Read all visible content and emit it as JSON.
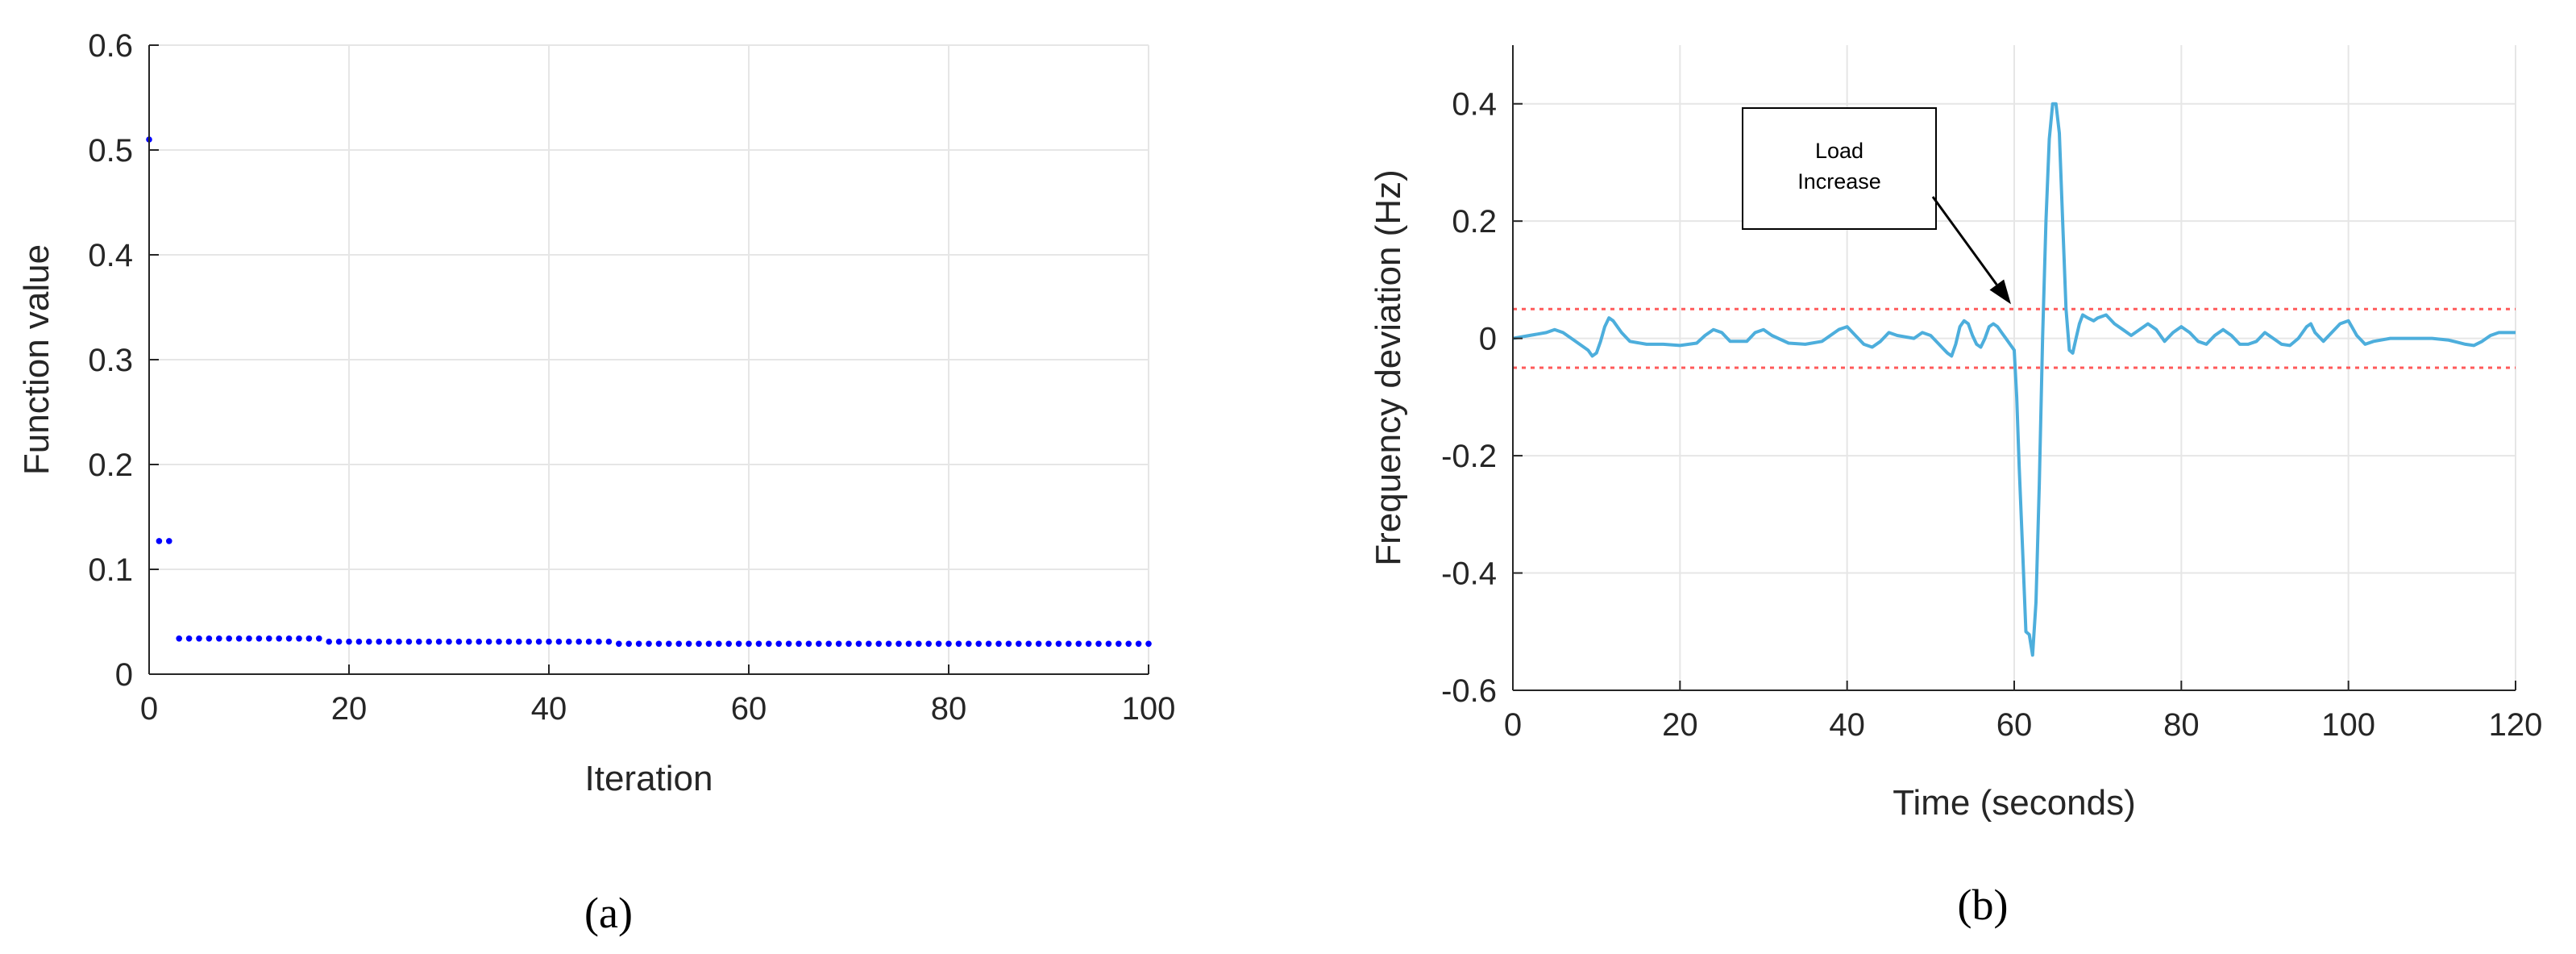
{
  "chart_data": [
    {
      "type": "scatter",
      "panel_label": "(a)",
      "xlabel": "Iteration",
      "ylabel": "Function value",
      "xlim": [
        0,
        100
      ],
      "ylim": [
        0,
        0.6
      ],
      "xticks": [
        0,
        20,
        40,
        60,
        80,
        100
      ],
      "yticks": [
        0,
        0.1,
        0.2,
        0.3,
        0.4,
        0.5,
        0.6
      ],
      "grid": true,
      "marker_color": "#0000ff",
      "series": [
        {
          "points": [
            [
              0,
              0.51
            ],
            [
              1,
              0.127
            ],
            [
              2,
              0.127
            ],
            [
              3,
              0.034
            ],
            [
              4,
              0.034
            ],
            [
              5,
              0.034
            ],
            [
              6,
              0.034
            ],
            [
              7,
              0.034
            ],
            [
              8,
              0.034
            ],
            [
              9,
              0.034
            ],
            [
              10,
              0.034
            ],
            [
              11,
              0.034
            ],
            [
              12,
              0.034
            ],
            [
              13,
              0.034
            ],
            [
              14,
              0.034
            ],
            [
              15,
              0.034
            ],
            [
              16,
              0.034
            ],
            [
              17,
              0.034
            ],
            [
              18,
              0.031
            ],
            [
              19,
              0.031
            ],
            [
              20,
              0.031
            ],
            [
              21,
              0.031
            ],
            [
              22,
              0.031
            ],
            [
              23,
              0.031
            ],
            [
              24,
              0.031
            ],
            [
              25,
              0.031
            ],
            [
              26,
              0.031
            ],
            [
              27,
              0.031
            ],
            [
              28,
              0.031
            ],
            [
              29,
              0.031
            ],
            [
              30,
              0.031
            ],
            [
              31,
              0.031
            ],
            [
              32,
              0.031
            ],
            [
              33,
              0.031
            ],
            [
              34,
              0.031
            ],
            [
              35,
              0.031
            ],
            [
              36,
              0.031
            ],
            [
              37,
              0.031
            ],
            [
              38,
              0.031
            ],
            [
              39,
              0.031
            ],
            [
              40,
              0.031
            ],
            [
              41,
              0.031
            ],
            [
              42,
              0.031
            ],
            [
              43,
              0.031
            ],
            [
              44,
              0.031
            ],
            [
              45,
              0.031
            ],
            [
              46,
              0.031
            ],
            [
              47,
              0.029
            ],
            [
              48,
              0.029
            ],
            [
              49,
              0.029
            ],
            [
              50,
              0.029
            ],
            [
              51,
              0.029
            ],
            [
              52,
              0.029
            ],
            [
              53,
              0.029
            ],
            [
              54,
              0.029
            ],
            [
              55,
              0.029
            ],
            [
              56,
              0.029
            ],
            [
              57,
              0.029
            ],
            [
              58,
              0.029
            ],
            [
              59,
              0.029
            ],
            [
              60,
              0.029
            ],
            [
              61,
              0.029
            ],
            [
              62,
              0.029
            ],
            [
              63,
              0.029
            ],
            [
              64,
              0.029
            ],
            [
              65,
              0.029
            ],
            [
              66,
              0.029
            ],
            [
              67,
              0.029
            ],
            [
              68,
              0.029
            ],
            [
              69,
              0.029
            ],
            [
              70,
              0.029
            ],
            [
              71,
              0.029
            ],
            [
              72,
              0.029
            ],
            [
              73,
              0.029
            ],
            [
              74,
              0.029
            ],
            [
              75,
              0.029
            ],
            [
              76,
              0.029
            ],
            [
              77,
              0.029
            ],
            [
              78,
              0.029
            ],
            [
              79,
              0.029
            ],
            [
              80,
              0.029
            ],
            [
              81,
              0.029
            ],
            [
              82,
              0.029
            ],
            [
              83,
              0.029
            ],
            [
              84,
              0.029
            ],
            [
              85,
              0.029
            ],
            [
              86,
              0.029
            ],
            [
              87,
              0.029
            ],
            [
              88,
              0.029
            ],
            [
              89,
              0.029
            ],
            [
              90,
              0.029
            ],
            [
              91,
              0.029
            ],
            [
              92,
              0.029
            ],
            [
              93,
              0.029
            ],
            [
              94,
              0.029
            ],
            [
              95,
              0.029
            ],
            [
              96,
              0.029
            ],
            [
              97,
              0.029
            ],
            [
              98,
              0.029
            ],
            [
              99,
              0.029
            ],
            [
              100,
              0.029
            ]
          ]
        }
      ]
    },
    {
      "type": "line",
      "panel_label": "(b)",
      "xlabel": "Time (seconds)",
      "ylabel": "Frequency deviation (Hz)",
      "xlim": [
        0,
        120
      ],
      "ylim": [
        -0.6,
        0.5
      ],
      "xticks": [
        0,
        20,
        40,
        60,
        80,
        100,
        120
      ],
      "yticks": [
        -0.6,
        -0.4,
        -0.2,
        0,
        0.2,
        0.4
      ],
      "ytick_labels": [
        "-0.6",
        "-0.4",
        "-0.2",
        "0",
        "0.2",
        "0.4"
      ],
      "grid": true,
      "line_color": "#4daedc",
      "threshold_color": "#ff5a5a",
      "thresholds": [
        0.05,
        -0.05
      ],
      "annotation": {
        "lines": [
          "Load",
          "Increase"
        ],
        "points_to": [
          60,
          0.05
        ]
      },
      "series": [
        {
          "points": [
            [
              0,
              0.0
            ],
            [
              2,
              0.005
            ],
            [
              4,
              0.01
            ],
            [
              5,
              0.015
            ],
            [
              6,
              0.01
            ],
            [
              7,
              0.0
            ],
            [
              8,
              -0.01
            ],
            [
              9,
              -0.02
            ],
            [
              9.5,
              -0.03
            ],
            [
              10,
              -0.025
            ],
            [
              10.5,
              -0.005
            ],
            [
              11,
              0.02
            ],
            [
              11.5,
              0.035
            ],
            [
              12,
              0.03
            ],
            [
              13,
              0.01
            ],
            [
              14,
              -0.005
            ],
            [
              16,
              -0.01
            ],
            [
              18,
              -0.01
            ],
            [
              20,
              -0.012
            ],
            [
              22,
              -0.008
            ],
            [
              23,
              0.005
            ],
            [
              24,
              0.015
            ],
            [
              25,
              0.01
            ],
            [
              26,
              -0.005
            ],
            [
              28,
              -0.005
            ],
            [
              29,
              0.01
            ],
            [
              30,
              0.015
            ],
            [
              31,
              0.005
            ],
            [
              33,
              -0.008
            ],
            [
              35,
              -0.01
            ],
            [
              37,
              -0.005
            ],
            [
              39,
              0.015
            ],
            [
              40,
              0.02
            ],
            [
              41,
              0.005
            ],
            [
              42,
              -0.01
            ],
            [
              43,
              -0.015
            ],
            [
              44,
              -0.005
            ],
            [
              45,
              0.01
            ],
            [
              46,
              0.005
            ],
            [
              48,
              0.0
            ],
            [
              49,
              0.01
            ],
            [
              50,
              0.005
            ],
            [
              51,
              -0.01
            ],
            [
              52,
              -0.025
            ],
            [
              52.5,
              -0.03
            ],
            [
              53,
              -0.01
            ],
            [
              53.5,
              0.02
            ],
            [
              54,
              0.03
            ],
            [
              54.5,
              0.025
            ],
            [
              55,
              0.005
            ],
            [
              55.5,
              -0.01
            ],
            [
              56,
              -0.015
            ],
            [
              56.5,
              0.0
            ],
            [
              57,
              0.02
            ],
            [
              57.5,
              0.025
            ],
            [
              58,
              0.02
            ],
            [
              58.5,
              0.01
            ],
            [
              59,
              0.0
            ],
            [
              59.5,
              -0.01
            ],
            [
              60,
              -0.02
            ],
            [
              60.3,
              -0.1
            ],
            [
              60.6,
              -0.22
            ],
            [
              61,
              -0.36
            ],
            [
              61.4,
              -0.5
            ],
            [
              61.8,
              -0.505
            ],
            [
              62.2,
              -0.54
            ],
            [
              62.6,
              -0.45
            ],
            [
              63,
              -0.25
            ],
            [
              63.4,
              0.0
            ],
            [
              63.8,
              0.2
            ],
            [
              64.2,
              0.34
            ],
            [
              64.6,
              0.4
            ],
            [
              65,
              0.4
            ],
            [
              65.4,
              0.35
            ],
            [
              65.8,
              0.2
            ],
            [
              66.2,
              0.05
            ],
            [
              66.6,
              -0.02
            ],
            [
              67,
              -0.025
            ],
            [
              67.4,
              0.0
            ],
            [
              67.8,
              0.025
            ],
            [
              68.2,
              0.04
            ],
            [
              68.8,
              0.035
            ],
            [
              69.5,
              0.03
            ],
            [
              70,
              0.035
            ],
            [
              71,
              0.04
            ],
            [
              72,
              0.025
            ],
            [
              73,
              0.015
            ],
            [
              74,
              0.005
            ],
            [
              75,
              0.015
            ],
            [
              76,
              0.025
            ],
            [
              77,
              0.015
            ],
            [
              78,
              -0.005
            ],
            [
              79,
              0.01
            ],
            [
              80,
              0.02
            ],
            [
              81,
              0.01
            ],
            [
              82,
              -0.005
            ],
            [
              83,
              -0.01
            ],
            [
              84,
              0.005
            ],
            [
              85,
              0.015
            ],
            [
              86,
              0.005
            ],
            [
              87,
              -0.01
            ],
            [
              88,
              -0.01
            ],
            [
              89,
              -0.005
            ],
            [
              90,
              0.01
            ],
            [
              91,
              0.0
            ],
            [
              92,
              -0.01
            ],
            [
              93,
              -0.012
            ],
            [
              94,
              0.0
            ],
            [
              95,
              0.02
            ],
            [
              95.5,
              0.025
            ],
            [
              96,
              0.01
            ],
            [
              97,
              -0.005
            ],
            [
              98,
              0.01
            ],
            [
              99,
              0.025
            ],
            [
              100,
              0.03
            ],
            [
              101,
              0.005
            ],
            [
              102,
              -0.01
            ],
            [
              103,
              -0.005
            ],
            [
              105,
              0.0
            ],
            [
              108,
              0.0
            ],
            [
              110,
              0.0
            ],
            [
              112,
              -0.003
            ],
            [
              114,
              -0.01
            ],
            [
              115,
              -0.012
            ],
            [
              116,
              -0.005
            ],
            [
              117,
              0.005
            ],
            [
              118,
              0.01
            ],
            [
              120,
              0.01
            ]
          ]
        }
      ]
    }
  ]
}
